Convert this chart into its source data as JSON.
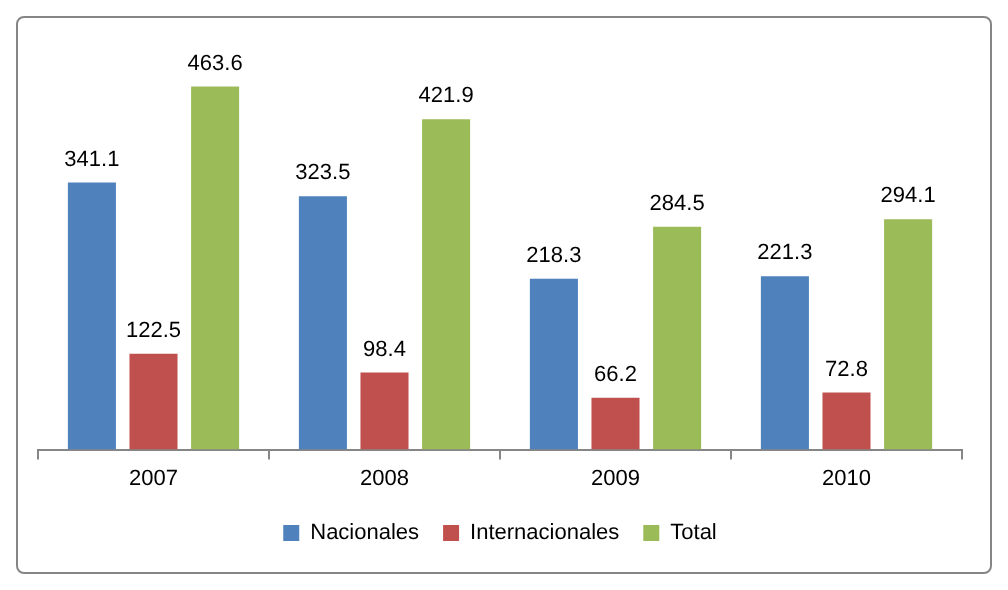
{
  "chart_data": {
    "type": "bar",
    "categories": [
      "2007",
      "2008",
      "2009",
      "2010"
    ],
    "series": [
      {
        "name": "Nacionales",
        "color": "#4f81bd",
        "values": [
          341.1,
          323.5,
          218.3,
          221.3
        ]
      },
      {
        "name": "Internacionales",
        "color": "#c0504d",
        "values": [
          122.5,
          98.4,
          66.2,
          72.8
        ]
      },
      {
        "name": "Total",
        "color": "#9bbb59",
        "values": [
          463.6,
          421.9,
          284.5,
          294.1
        ]
      }
    ],
    "data_labels": true,
    "legend": "bottom",
    "grid": false,
    "tick_labels": "x"
  }
}
